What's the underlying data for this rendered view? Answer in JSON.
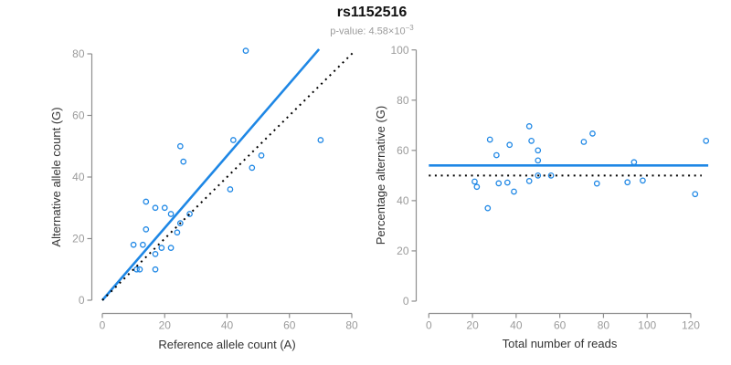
{
  "figure": {
    "title": "rs1152516",
    "subtitle_label": "p-value: ",
    "p_value_mantissa": "4.58",
    "p_value_times": "×10",
    "p_value_exponent": "−3"
  },
  "colors": {
    "accent": "#1E87E5",
    "reference_line": "#000000",
    "axis_line": "#8E8E8E",
    "tick_label": "#9B9B9B",
    "axis_title": "#333333",
    "title": "#111111",
    "subtitle": "#9B9B9B",
    "background": "#FFFFFF"
  },
  "chart_data": [
    {
      "type": "scatter",
      "title": "",
      "xlabel": "Reference allele count (A)",
      "ylabel": "Alternative allele count (G)",
      "xlim": [
        0,
        82
      ],
      "ylim": [
        0,
        82
      ],
      "xticks": [
        0,
        20,
        40,
        60,
        80
      ],
      "yticks": [
        0,
        20,
        40,
        60,
        80
      ],
      "grid": false,
      "legend": "none",
      "points": [
        [
          46,
          81
        ],
        [
          70,
          52
        ],
        [
          42,
          52
        ],
        [
          25,
          50
        ],
        [
          26,
          45
        ],
        [
          51,
          47
        ],
        [
          48,
          43
        ],
        [
          41,
          36
        ],
        [
          14,
          32
        ],
        [
          17,
          30
        ],
        [
          20,
          30
        ],
        [
          22,
          28
        ],
        [
          28,
          28
        ],
        [
          25,
          25
        ],
        [
          14,
          23
        ],
        [
          24,
          22
        ],
        [
          13,
          18
        ],
        [
          10,
          18
        ],
        [
          19,
          17
        ],
        [
          22,
          17
        ],
        [
          17,
          15
        ],
        [
          11,
          10
        ],
        [
          12,
          10
        ],
        [
          17,
          10
        ]
      ],
      "lines": [
        {
          "name": "fit-line",
          "x1": 0,
          "y1": 0,
          "x2": 69.5,
          "y2": 81.5,
          "dashed": false,
          "color": "accent",
          "width": 2.6
        },
        {
          "name": "identity-line",
          "x1": 0,
          "y1": 0,
          "x2": 81,
          "y2": 81,
          "dashed": true,
          "color": "reference_line",
          "width": 2
        }
      ]
    },
    {
      "type": "scatter",
      "title": "",
      "xlabel": "Total number of reads",
      "ylabel": "Percentage alternative (G)",
      "xlim": [
        0,
        128
      ],
      "ylim": [
        0,
        100
      ],
      "xticks": [
        0,
        20,
        40,
        60,
        80,
        100,
        120
      ],
      "yticks": [
        0,
        20,
        40,
        60,
        80,
        100
      ],
      "grid": false,
      "legend": "none",
      "points": [
        [
          127,
          63.8
        ],
        [
          122,
          42.6
        ],
        [
          94,
          55.3
        ],
        [
          98,
          48
        ],
        [
          91,
          47.3
        ],
        [
          77,
          46.8
        ],
        [
          75,
          66.7
        ],
        [
          71,
          63.4
        ],
        [
          56,
          50
        ],
        [
          50,
          60
        ],
        [
          50,
          56
        ],
        [
          50,
          50
        ],
        [
          47,
          63.8
        ],
        [
          46,
          69.6
        ],
        [
          46,
          47.8
        ],
        [
          39,
          43.6
        ],
        [
          37,
          62.2
        ],
        [
          36,
          47.2
        ],
        [
          32,
          46.9
        ],
        [
          31,
          58.1
        ],
        [
          28,
          64.3
        ],
        [
          27,
          37
        ],
        [
          22,
          45.5
        ],
        [
          21,
          47.6
        ]
      ],
      "lines": [
        {
          "name": "mean-percentage-line",
          "x1": 0,
          "y1": 54,
          "x2": 128,
          "y2": 54,
          "dashed": false,
          "color": "accent",
          "width": 2.6
        },
        {
          "name": "null-percentage-line",
          "x1": 0,
          "y1": 50,
          "x2": 125,
          "y2": 50,
          "dashed": true,
          "color": "reference_line",
          "width": 2
        }
      ]
    }
  ]
}
